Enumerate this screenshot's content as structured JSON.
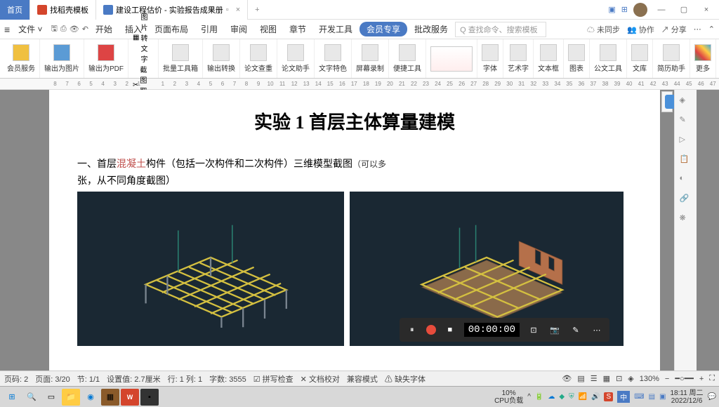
{
  "titlebar": {
    "home_tab": "首页",
    "template_tab": "找稻壳模板",
    "doc_tab": "建设工程估价 - 实验报告成果册",
    "doc_icon_color": "#4a7ac4",
    "template_icon_color": "#d4452c"
  },
  "menubar": {
    "file": "文件",
    "items": [
      "开始",
      "插入",
      "页面布局",
      "引用",
      "审阅",
      "视图",
      "章节",
      "开发工具"
    ],
    "vip": "会员专享",
    "extra": [
      "批改服务"
    ],
    "search_placeholder": "查找命令、搜索模板",
    "right": [
      "未同步",
      "协作",
      "分享"
    ]
  },
  "toolbar": {
    "groups": [
      {
        "label": "会员服务",
        "icon": "#f0c040"
      },
      {
        "label": "输出为图片",
        "icon": "#5b9bd5"
      },
      {
        "label": "输出为PDF",
        "icon": "#d44"
      },
      {
        "label": "图片转文字",
        "sub": "截图取字"
      },
      {
        "label": "批量工具箱",
        "icon": "#888"
      },
      {
        "label": "输出转换",
        "icon": "#888"
      },
      {
        "label": "论文查重",
        "icon": "#888"
      },
      {
        "label": "论文助手",
        "icon": "#888"
      },
      {
        "label": "文字特色",
        "icon": "#888"
      },
      {
        "label": "屏幕录制",
        "icon": "#888"
      },
      {
        "label": "便捷工具",
        "icon": "#888"
      },
      {
        "label": "字体",
        "icon": "#888"
      },
      {
        "label": "艺术字",
        "icon": "#888"
      },
      {
        "label": "文本框",
        "icon": "#888"
      },
      {
        "label": "图表",
        "icon": "#888"
      },
      {
        "label": "公文工具",
        "icon": "#888"
      },
      {
        "label": "文库",
        "icon": "#888"
      },
      {
        "label": "简历助手",
        "icon": "#888"
      },
      {
        "label": "更多",
        "icon": "#888"
      }
    ]
  },
  "ruler": {
    "marks": [
      8,
      7,
      6,
      5,
      4,
      3,
      2,
      1,
      "",
      1,
      2,
      3,
      4,
      5,
      6,
      7,
      8,
      9,
      10,
      11,
      12,
      13,
      14,
      15,
      16,
      17,
      18,
      19,
      20,
      21,
      22,
      23,
      24,
      25,
      26,
      27,
      28,
      29,
      30,
      31,
      32,
      33,
      34,
      35,
      36,
      37,
      38,
      39,
      40,
      41,
      42,
      43,
      44,
      45,
      46,
      47
    ]
  },
  "document": {
    "title": "实验 1    首层主体算量建模",
    "section_num": "一、",
    "section_pre": "首层",
    "section_hl": "混凝土",
    "section_post": "构件（包括一次构件和二次构件）三维模型截图",
    "section_note": "（可以多",
    "section_line2": "张，从不同角度截图）",
    "fig_bg": "#1a2833",
    "struct1": {
      "beam_color": "#d4c040",
      "column_color": "#7a8590",
      "vert_color": "#2a8070"
    },
    "struct2": {
      "beam_color": "#d4c040",
      "wall_color": "#b5704a",
      "floor_color": "#8a6a4a"
    }
  },
  "recorder": {
    "time": "00:00:00"
  },
  "statusbar": {
    "left": [
      "页码: 2",
      "页面: 3/20",
      "节: 1/1",
      "设置值: 2.7厘米",
      "行: 1  列: 1",
      "字数: 3555"
    ],
    "checks": [
      "拼写检查",
      "文档校对",
      "兼容模式",
      "缺失字体"
    ],
    "zoom": "130%"
  },
  "taskbar": {
    "cpu_label": "CPU负载",
    "cpu_pct": "10%",
    "time": "18:11 周二",
    "date": "2022/12/6",
    "ime": "中"
  }
}
